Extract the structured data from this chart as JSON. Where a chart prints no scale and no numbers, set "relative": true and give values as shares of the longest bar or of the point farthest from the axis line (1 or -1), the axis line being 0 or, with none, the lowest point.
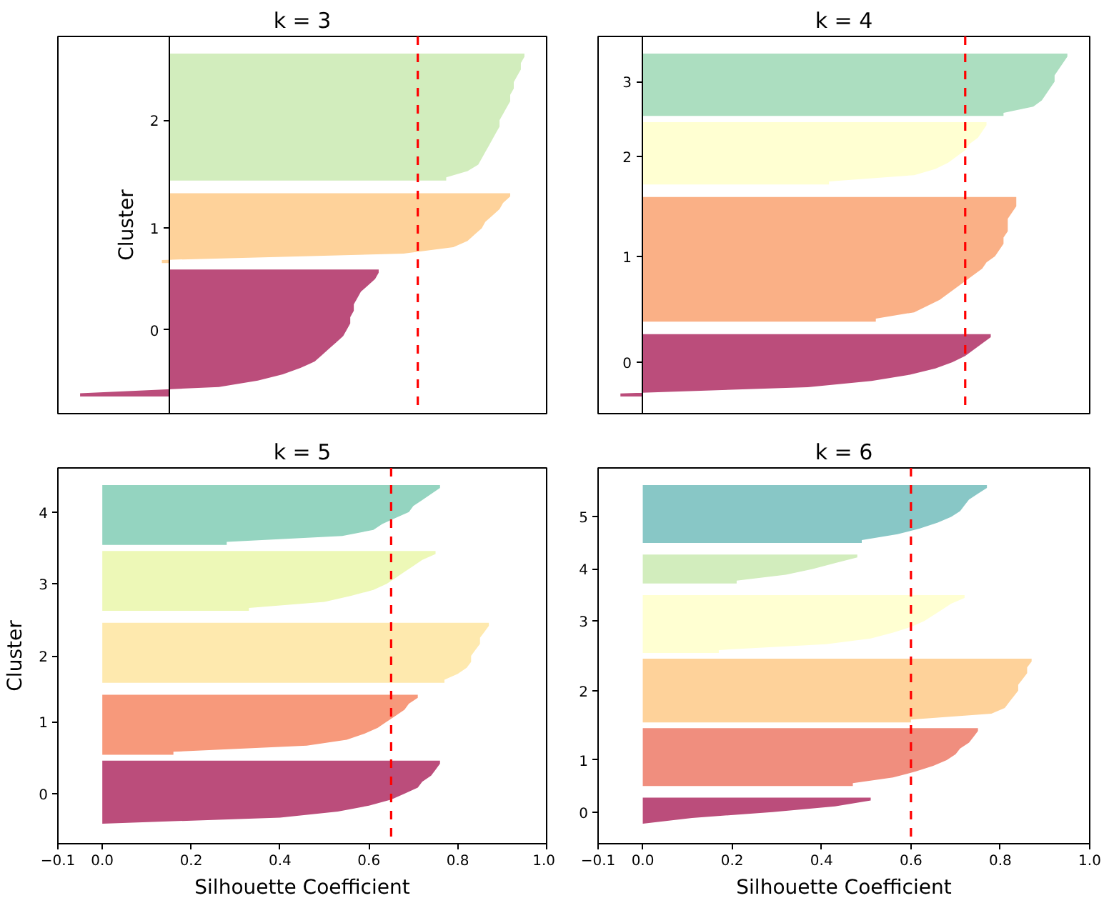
{
  "chart_data": [
    {
      "type": "area",
      "orientation": "horizontal",
      "title": "k = 3",
      "ylabel": "Cluster",
      "relative": true,
      "categories": [
        null,
        null,
        null,
        null,
        null,
        null,
        null,
        null,
        null,
        null,
        "2",
        null,
        null,
        null,
        null,
        null,
        null,
        null,
        null,
        null,
        null,
        null,
        null,
        null,
        null,
        null,
        null,
        "1",
        null,
        null,
        null,
        null,
        null,
        null,
        null,
        null,
        null,
        null,
        null,
        null,
        null,
        null,
        null,
        "0",
        null,
        null,
        null,
        null,
        null,
        null,
        null,
        null,
        null,
        null
      ],
      "series": [
        {
          "color": "#bb4d7b",
          "values": [
            null,
            null,
            null,
            null,
            null,
            null,
            null,
            null,
            null,
            null,
            null,
            null,
            null,
            null,
            null,
            null,
            null,
            null,
            null,
            null,
            null,
            null,
            null,
            null,
            null,
            null,
            null,
            null,
            null,
            null,
            null,
            null,
            null,
            null,
            0.59,
            0.58,
            0.56,
            0.54,
            0.53,
            0.52,
            0.52,
            0.51,
            0.51,
            0.5,
            0.49,
            0.47,
            0.45,
            0.43,
            0.41,
            0.37,
            0.32,
            0.25,
            0.14,
            -0.25
          ]
        },
        {
          "color": "#fed29a",
          "values": [
            null,
            null,
            null,
            null,
            null,
            null,
            null,
            null,
            null,
            null,
            null,
            null,
            null,
            null,
            null,
            null,
            null,
            null,
            null,
            null,
            null,
            null,
            0.96,
            0.94,
            0.93,
            0.91,
            0.89,
            0.88,
            0.86,
            0.84,
            0.8,
            0.66,
            -0.02,
            null,
            null,
            null,
            null,
            null,
            null,
            null,
            null,
            null,
            null,
            null,
            null,
            null,
            null,
            null,
            null,
            null,
            null,
            null,
            null,
            null
          ]
        },
        {
          "color": "#d2edbd",
          "values": [
            1,
            0.99,
            0.99,
            0.98,
            0.97,
            0.97,
            0.96,
            0.96,
            0.95,
            0.94,
            0.93,
            0.93,
            0.92,
            0.91,
            0.9,
            0.89,
            0.88,
            0.87,
            0.84,
            0.78,
            null,
            null,
            null,
            null,
            null,
            null,
            null,
            null,
            null,
            null,
            null,
            null,
            null,
            null,
            null,
            null,
            null,
            null,
            null,
            null,
            null,
            null,
            null,
            null,
            null,
            null,
            null,
            null,
            null,
            null,
            null,
            null,
            null,
            null
          ]
        }
      ],
      "ref_lines": [
        {
          "axis": "x",
          "value": 0.7,
          "color": "#ff0000",
          "line_style": "dashed"
        }
      ]
    },
    {
      "type": "area",
      "orientation": "horizontal",
      "title": "k = 4",
      "relative": true,
      "categories": [
        null,
        null,
        null,
        null,
        "3",
        null,
        null,
        null,
        null,
        null,
        null,
        null,
        null,
        null,
        null,
        null,
        "2",
        null,
        null,
        null,
        null,
        null,
        null,
        null,
        null,
        null,
        null,
        null,
        null,
        null,
        null,
        null,
        "1",
        null,
        null,
        null,
        null,
        null,
        null,
        null,
        null,
        null,
        null,
        null,
        null,
        null,
        null,
        null,
        null,
        "0",
        null,
        null,
        null,
        null,
        null
      ],
      "series": [
        {
          "color": "#bb4d7b",
          "values": [
            null,
            null,
            null,
            null,
            null,
            null,
            null,
            null,
            null,
            null,
            null,
            null,
            null,
            null,
            null,
            null,
            null,
            null,
            null,
            null,
            null,
            null,
            null,
            null,
            null,
            null,
            null,
            null,
            null,
            null,
            null,
            null,
            null,
            null,
            null,
            null,
            null,
            null,
            null,
            null,
            null,
            null,
            null,
            null,
            null,
            0.82,
            0.8,
            0.78,
            0.76,
            0.73,
            0.69,
            0.63,
            0.54,
            0.39,
            -0.05
          ]
        },
        {
          "color": "#fab086",
          "values": [
            null,
            null,
            null,
            null,
            null,
            null,
            null,
            null,
            null,
            null,
            null,
            null,
            null,
            null,
            null,
            null,
            null,
            null,
            null,
            null,
            null,
            null,
            null,
            0.88,
            0.88,
            0.87,
            0.86,
            0.86,
            0.86,
            0.85,
            0.85,
            0.84,
            0.83,
            0.81,
            0.8,
            0.78,
            0.76,
            0.74,
            0.72,
            0.7,
            0.67,
            0.64,
            0.55,
            null,
            null,
            null,
            null,
            null,
            null,
            null,
            null,
            null,
            null,
            null,
            null
          ]
        },
        {
          "color": "#ffffd2",
          "values": [
            null,
            null,
            null,
            null,
            null,
            null,
            null,
            null,
            null,
            null,
            null,
            0.81,
            0.8,
            0.79,
            0.77,
            0.76,
            0.74,
            0.72,
            0.69,
            0.64,
            0.44,
            null,
            null,
            null,
            null,
            null,
            null,
            null,
            null,
            null,
            null,
            null,
            null,
            null,
            null,
            null,
            null,
            null,
            null,
            null,
            null,
            null,
            null,
            null,
            null,
            null,
            null,
            null,
            null,
            null,
            null,
            null,
            null,
            null,
            null
          ]
        },
        {
          "color": "#acdec0",
          "values": [
            1,
            0.99,
            0.98,
            0.97,
            0.97,
            0.96,
            0.95,
            0.94,
            0.92,
            0.85,
            null,
            null,
            null,
            null,
            null,
            null,
            null,
            null,
            null,
            null,
            null,
            null,
            null,
            null,
            null,
            null,
            null,
            null,
            null,
            null,
            null,
            null,
            null,
            null,
            null,
            null,
            null,
            null,
            null,
            null,
            null,
            null,
            null,
            null,
            null,
            null,
            null,
            null,
            null,
            null,
            null,
            null,
            null,
            null,
            null
          ]
        }
      ],
      "ref_lines": [
        {
          "axis": "x",
          "value": 0.76,
          "color": "#ff0000",
          "line_style": "dashed"
        }
      ]
    },
    {
      "type": "area",
      "orientation": "horizontal",
      "title": "k = 5",
      "xlabel": "Silhouette Coefficient",
      "ylabel": "Cluster",
      "xlim": [
        -0.1,
        1
      ],
      "xticks": [
        {
          "value": -0.1,
          "label": "−0.1"
        },
        {
          "value": 0,
          "label": "0.0"
        },
        0.2,
        0.4,
        0.6,
        0.8,
        {
          "value": 1,
          "label": "1.0"
        }
      ],
      "categories": [
        null,
        null,
        null,
        null,
        "4",
        null,
        null,
        null,
        null,
        null,
        null,
        null,
        null,
        null,
        null,
        null,
        "3",
        null,
        null,
        null,
        null,
        null,
        null,
        null,
        null,
        null,
        null,
        null,
        "2",
        null,
        null,
        null,
        null,
        null,
        null,
        null,
        null,
        null,
        null,
        "1",
        null,
        null,
        null,
        null,
        null,
        null,
        null,
        null,
        null,
        null,
        null,
        "0",
        null,
        null,
        null,
        null,
        null
      ],
      "series": [
        {
          "color": "#bb4d7b",
          "values": [
            null,
            null,
            null,
            null,
            null,
            null,
            null,
            null,
            null,
            null,
            null,
            null,
            null,
            null,
            null,
            null,
            null,
            null,
            null,
            null,
            null,
            null,
            null,
            null,
            null,
            null,
            null,
            null,
            null,
            null,
            null,
            null,
            null,
            null,
            null,
            null,
            null,
            null,
            null,
            null,
            null,
            null,
            null,
            null,
            null,
            null,
            0.76,
            0.75,
            0.74,
            0.72,
            0.71,
            0.68,
            0.65,
            0.6,
            0.53,
            0.4,
            0
          ]
        },
        {
          "color": "#f7997b",
          "values": [
            null,
            null,
            null,
            null,
            null,
            null,
            null,
            null,
            null,
            null,
            null,
            null,
            null,
            null,
            null,
            null,
            null,
            null,
            null,
            null,
            null,
            null,
            null,
            null,
            null,
            null,
            null,
            null,
            null,
            null,
            null,
            null,
            null,
            null,
            null,
            0.71,
            0.69,
            0.68,
            0.66,
            0.64,
            0.62,
            0.59,
            0.55,
            0.46,
            0.16,
            null,
            null,
            null,
            null,
            null,
            null,
            null,
            null,
            null,
            null,
            null,
            null
          ]
        },
        {
          "color": "#fee9ae",
          "values": [
            null,
            null,
            null,
            null,
            null,
            null,
            null,
            null,
            null,
            null,
            null,
            null,
            null,
            null,
            null,
            null,
            null,
            null,
            null,
            null,
            null,
            null,
            null,
            0.87,
            0.86,
            0.85,
            0.85,
            0.84,
            0.83,
            0.83,
            0.82,
            0.8,
            0.77,
            null,
            null,
            null,
            null,
            null,
            null,
            null,
            null,
            null,
            null,
            null,
            null,
            null,
            null,
            null,
            null,
            null,
            null,
            null,
            null,
            null,
            null,
            null,
            null
          ]
        },
        {
          "color": "#edf8b7",
          "values": [
            null,
            null,
            null,
            null,
            null,
            null,
            null,
            null,
            null,
            null,
            null,
            0.75,
            0.72,
            0.7,
            0.68,
            0.66,
            0.64,
            0.61,
            0.56,
            0.5,
            0.33,
            null,
            null,
            null,
            null,
            null,
            null,
            null,
            null,
            null,
            null,
            null,
            null,
            null,
            null,
            null,
            null,
            null,
            null,
            null,
            null,
            null,
            null,
            null,
            null,
            null,
            null,
            null,
            null,
            null,
            null,
            null,
            null,
            null,
            null,
            null,
            null
          ]
        },
        {
          "color": "#94d4c0",
          "values": [
            0.76,
            0.74,
            0.72,
            0.7,
            0.69,
            0.66,
            0.63,
            0.61,
            0.54,
            0.28,
            null,
            null,
            null,
            null,
            null,
            null,
            null,
            null,
            null,
            null,
            null,
            null,
            null,
            null,
            null,
            null,
            null,
            null,
            null,
            null,
            null,
            null,
            null,
            null,
            null,
            null,
            null,
            null,
            null,
            null,
            null,
            null,
            null,
            null,
            null,
            null,
            null,
            null,
            null,
            null,
            null,
            null,
            null,
            null,
            null,
            null,
            null
          ]
        }
      ],
      "ref_lines": [
        {
          "axis": "x",
          "value": 0.65,
          "color": "#ff0000",
          "line_style": "dashed"
        }
      ]
    },
    {
      "type": "area",
      "orientation": "horizontal",
      "title": "k = 6",
      "xlabel": "Silhouette Coefficient",
      "xlim": [
        -0.1,
        1
      ],
      "xticks": [
        {
          "value": -0.1,
          "label": "−0.1"
        },
        {
          "value": 0,
          "label": "0.0"
        },
        0.2,
        0.4,
        0.6,
        0.8,
        {
          "value": 1,
          "label": "1.0"
        }
      ],
      "categories": [
        null,
        null,
        null,
        null,
        null,
        "5",
        null,
        null,
        null,
        null,
        null,
        null,
        null,
        null,
        "4",
        null,
        null,
        null,
        null,
        null,
        null,
        null,
        null,
        "3",
        null,
        null,
        null,
        null,
        null,
        null,
        null,
        null,
        null,
        null,
        null,
        "2",
        null,
        null,
        null,
        null,
        null,
        null,
        null,
        null,
        null,
        null,
        null,
        "1",
        null,
        null,
        null,
        null,
        null,
        null,
        null,
        null,
        "0",
        null,
        null
      ],
      "series": [
        {
          "color": "#bb4d7b",
          "values": [
            null,
            null,
            null,
            null,
            null,
            null,
            null,
            null,
            null,
            null,
            null,
            null,
            null,
            null,
            null,
            null,
            null,
            null,
            null,
            null,
            null,
            null,
            null,
            null,
            null,
            null,
            null,
            null,
            null,
            null,
            null,
            null,
            null,
            null,
            null,
            null,
            null,
            null,
            null,
            null,
            null,
            null,
            null,
            null,
            null,
            null,
            null,
            null,
            null,
            null,
            null,
            null,
            null,
            null,
            0.51,
            0.43,
            0.29,
            0.11,
            0
          ]
        },
        {
          "color": "#f08e7e",
          "values": [
            null,
            null,
            null,
            null,
            null,
            null,
            null,
            null,
            null,
            null,
            null,
            null,
            null,
            null,
            null,
            null,
            null,
            null,
            null,
            null,
            null,
            null,
            null,
            null,
            null,
            null,
            null,
            null,
            null,
            null,
            null,
            null,
            null,
            null,
            null,
            null,
            null,
            null,
            null,
            null,
            null,
            null,
            0.75,
            0.74,
            0.73,
            0.71,
            0.7,
            0.68,
            0.65,
            0.61,
            0.56,
            0.47,
            null,
            null,
            null,
            null,
            null,
            null,
            null
          ]
        },
        {
          "color": "#fed29a",
          "values": [
            null,
            null,
            null,
            null,
            null,
            null,
            null,
            null,
            null,
            null,
            null,
            null,
            null,
            null,
            null,
            null,
            null,
            null,
            null,
            null,
            null,
            null,
            null,
            null,
            null,
            null,
            null,
            null,
            null,
            null,
            0.87,
            0.86,
            0.86,
            0.85,
            0.84,
            0.84,
            0.83,
            0.82,
            0.81,
            0.78,
            0.6,
            null,
            null,
            null,
            null,
            null,
            null,
            null,
            null,
            null,
            null,
            null,
            null,
            null,
            null,
            null,
            null,
            null,
            null
          ]
        },
        {
          "color": "#ffffd2",
          "values": [
            null,
            null,
            null,
            null,
            null,
            null,
            null,
            null,
            null,
            null,
            null,
            null,
            null,
            null,
            null,
            null,
            null,
            null,
            null,
            0.72,
            0.69,
            0.67,
            0.65,
            0.63,
            0.6,
            0.56,
            0.51,
            0.41,
            0.17,
            null,
            null,
            null,
            null,
            null,
            null,
            null,
            null,
            null,
            null,
            null,
            null,
            null,
            null,
            null,
            null,
            null,
            null,
            null,
            null,
            null,
            null,
            null,
            null,
            null,
            null,
            null,
            null,
            null,
            null
          ]
        },
        {
          "color": "#d2edbd",
          "values": [
            null,
            null,
            null,
            null,
            null,
            null,
            null,
            null,
            null,
            null,
            null,
            null,
            0.48,
            0.43,
            0.38,
            0.32,
            0.21,
            null,
            null,
            null,
            null,
            null,
            null,
            null,
            null,
            null,
            null,
            null,
            null,
            null,
            null,
            null,
            null,
            null,
            null,
            null,
            null,
            null,
            null,
            null,
            null,
            null,
            null,
            null,
            null,
            null,
            null,
            null,
            null,
            null,
            null,
            null,
            null,
            null,
            null,
            null,
            null,
            null,
            null
          ]
        },
        {
          "color": "#88c7c6",
          "values": [
            0.77,
            0.75,
            0.73,
            0.72,
            0.71,
            0.69,
            0.66,
            0.62,
            0.57,
            0.49,
            null,
            null,
            null,
            null,
            null,
            null,
            null,
            null,
            null,
            null,
            null,
            null,
            null,
            null,
            null,
            null,
            null,
            null,
            null,
            null,
            null,
            null,
            null,
            null,
            null,
            null,
            null,
            null,
            null,
            null,
            null,
            null,
            null,
            null,
            null,
            null,
            null,
            null,
            null,
            null,
            null,
            null,
            null,
            null,
            null,
            null,
            null,
            null,
            null
          ]
        }
      ],
      "ref_lines": [
        {
          "axis": "x",
          "value": 0.6,
          "color": "#ff0000",
          "line_style": "dashed"
        }
      ]
    }
  ]
}
